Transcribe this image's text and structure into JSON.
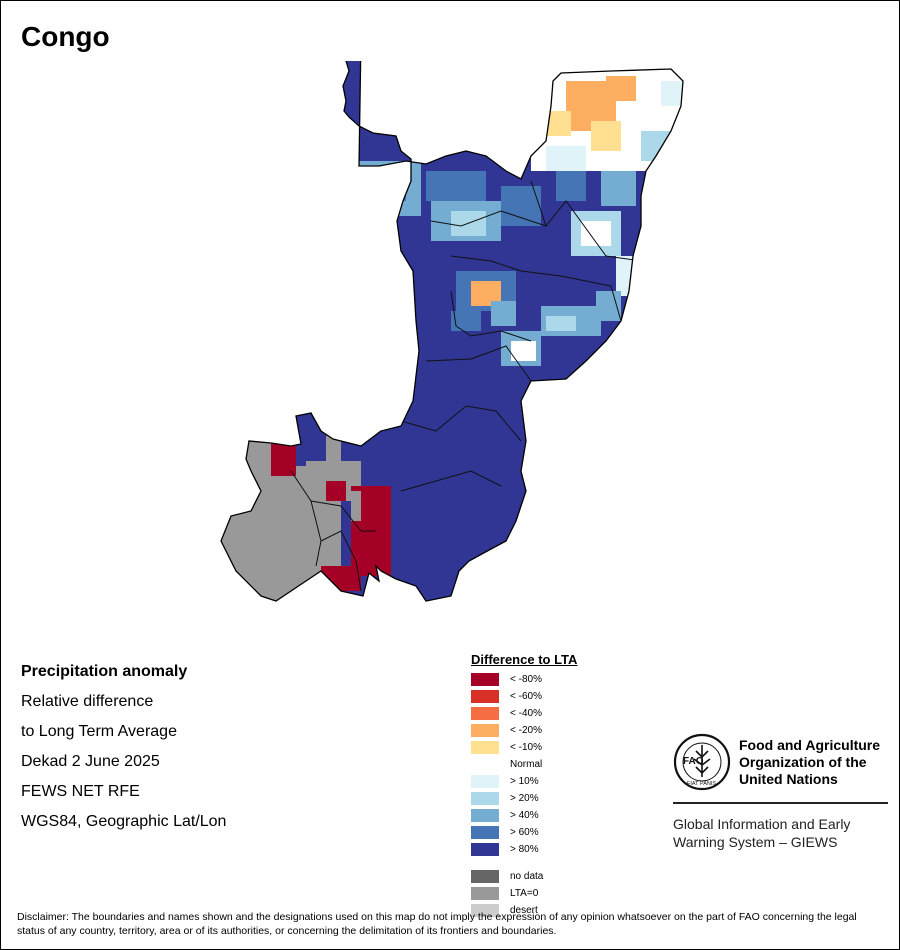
{
  "title": "Congo",
  "info": {
    "heading": "Precipitation anomaly",
    "line1": "Relative difference",
    "line2": "to Long Term Average",
    "period": "Dekad 2 June 2025",
    "source": "FEWS NET RFE",
    "projection": "WGS84, Geographic Lat/Lon"
  },
  "legend": {
    "title": "Difference to LTA",
    "classes": [
      {
        "label": "< -80%",
        "color": "#a50026"
      },
      {
        "label": "< -60%",
        "color": "#d73027"
      },
      {
        "label": "< -40%",
        "color": "#f46d43"
      },
      {
        "label": "< -20%",
        "color": "#fdae61"
      },
      {
        "label": "< -10%",
        "color": "#fee090"
      },
      {
        "label": "Normal",
        "color": "#ffffff"
      },
      {
        "label": "> 10%",
        "color": "#e0f3f8"
      },
      {
        "label": "> 20%",
        "color": "#abd9e9"
      },
      {
        "label": "> 40%",
        "color": "#74add1"
      },
      {
        "label": "> 60%",
        "color": "#4575b4"
      },
      {
        "label": "> 80%",
        "color": "#313695"
      }
    ],
    "extra": [
      {
        "label": "no data",
        "color": "#666666"
      },
      {
        "label": "LTA=0",
        "color": "#999999"
      },
      {
        "label": "desert",
        "color": "#cccccc"
      }
    ]
  },
  "fao": {
    "name_line1": "Food and Agriculture",
    "name_line2": "Organization of the",
    "name_line3": "United Nations",
    "logo_text": "FAO",
    "motto": "FIAT PANIS",
    "giews_line1": "Global Information and Early",
    "giews_line2": "Warning System – GIEWS"
  },
  "disclaimer": "Disclaimer: The boundaries and names shown and the designations used on this map do not imply the expression of any opinion whatsoever on the part of FAO concerning the legal status of any country, territory, area or of its authorities, or concerning the delimitation of its frontiers and boundaries."
}
